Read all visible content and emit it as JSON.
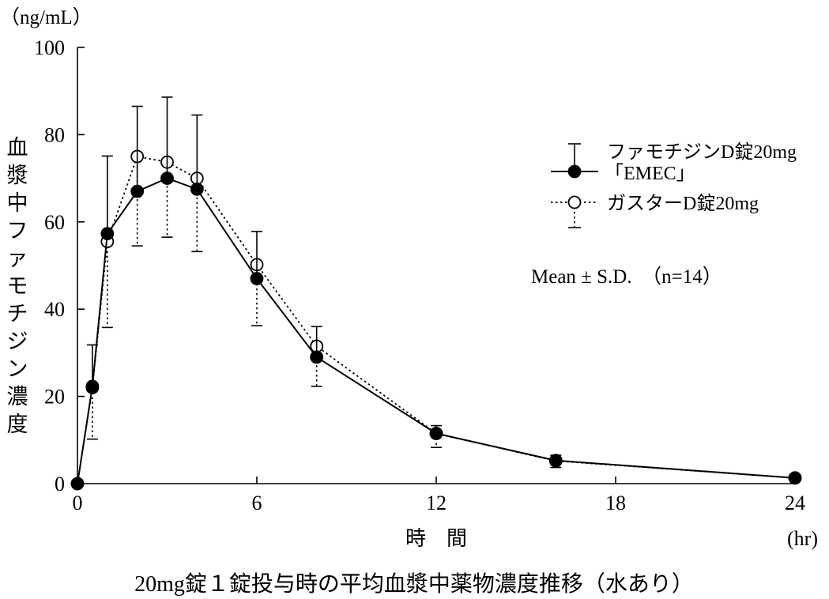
{
  "chart_data": {
    "type": "line",
    "title": "20mg錠１錠投与時の平均血漿中薬物濃度推移（水あり）",
    "ylabel": "血漿中ファモチジン濃度",
    "yunit": "（ng/mL）",
    "xlabel": "時　間",
    "xunit": "(hr)",
    "xlim": [
      0,
      24
    ],
    "ylim": [
      0,
      100
    ],
    "xticks": [
      0,
      6,
      12,
      18,
      24
    ],
    "yticks": [
      0,
      20,
      40,
      60,
      80,
      100
    ],
    "annotation": "Mean ± S.D.  （n=14）",
    "legend_position": "top-right",
    "series": [
      {
        "name": "ファモチジンD錠20mg「EMEC」",
        "legend_line1": "ファモチジンD錠20mg",
        "legend_line2": "「EMEC」",
        "marker": "filled-circle",
        "line": "solid",
        "error_dir": "up",
        "x": [
          0,
          0.5,
          1,
          2,
          3,
          4,
          6,
          8,
          12,
          16,
          24
        ],
        "y": [
          0,
          22.3,
          57.3,
          67,
          70,
          67.5,
          47,
          29,
          11.5,
          5.3,
          1.3
        ],
        "sd": [
          0,
          9.5,
          17.8,
          19.5,
          18.6,
          17,
          10.8,
          7,
          1.8,
          1.2,
          0.8
        ]
      },
      {
        "name": "ガスターD錠20mg",
        "legend_line1": "ガスターD錠20mg",
        "marker": "open-circle",
        "line": "dotted",
        "error_dir": "down",
        "x": [
          0,
          0.5,
          1,
          2,
          3,
          4,
          6,
          8,
          12,
          16,
          24
        ],
        "y": [
          0,
          22,
          55.5,
          75,
          73.7,
          70,
          50.2,
          31.5,
          11.5,
          5.2,
          1.3
        ],
        "sd": [
          0,
          11.8,
          19.7,
          20.5,
          17.2,
          16.8,
          14,
          9.2,
          3.2,
          1.5,
          0.8
        ]
      }
    ]
  }
}
